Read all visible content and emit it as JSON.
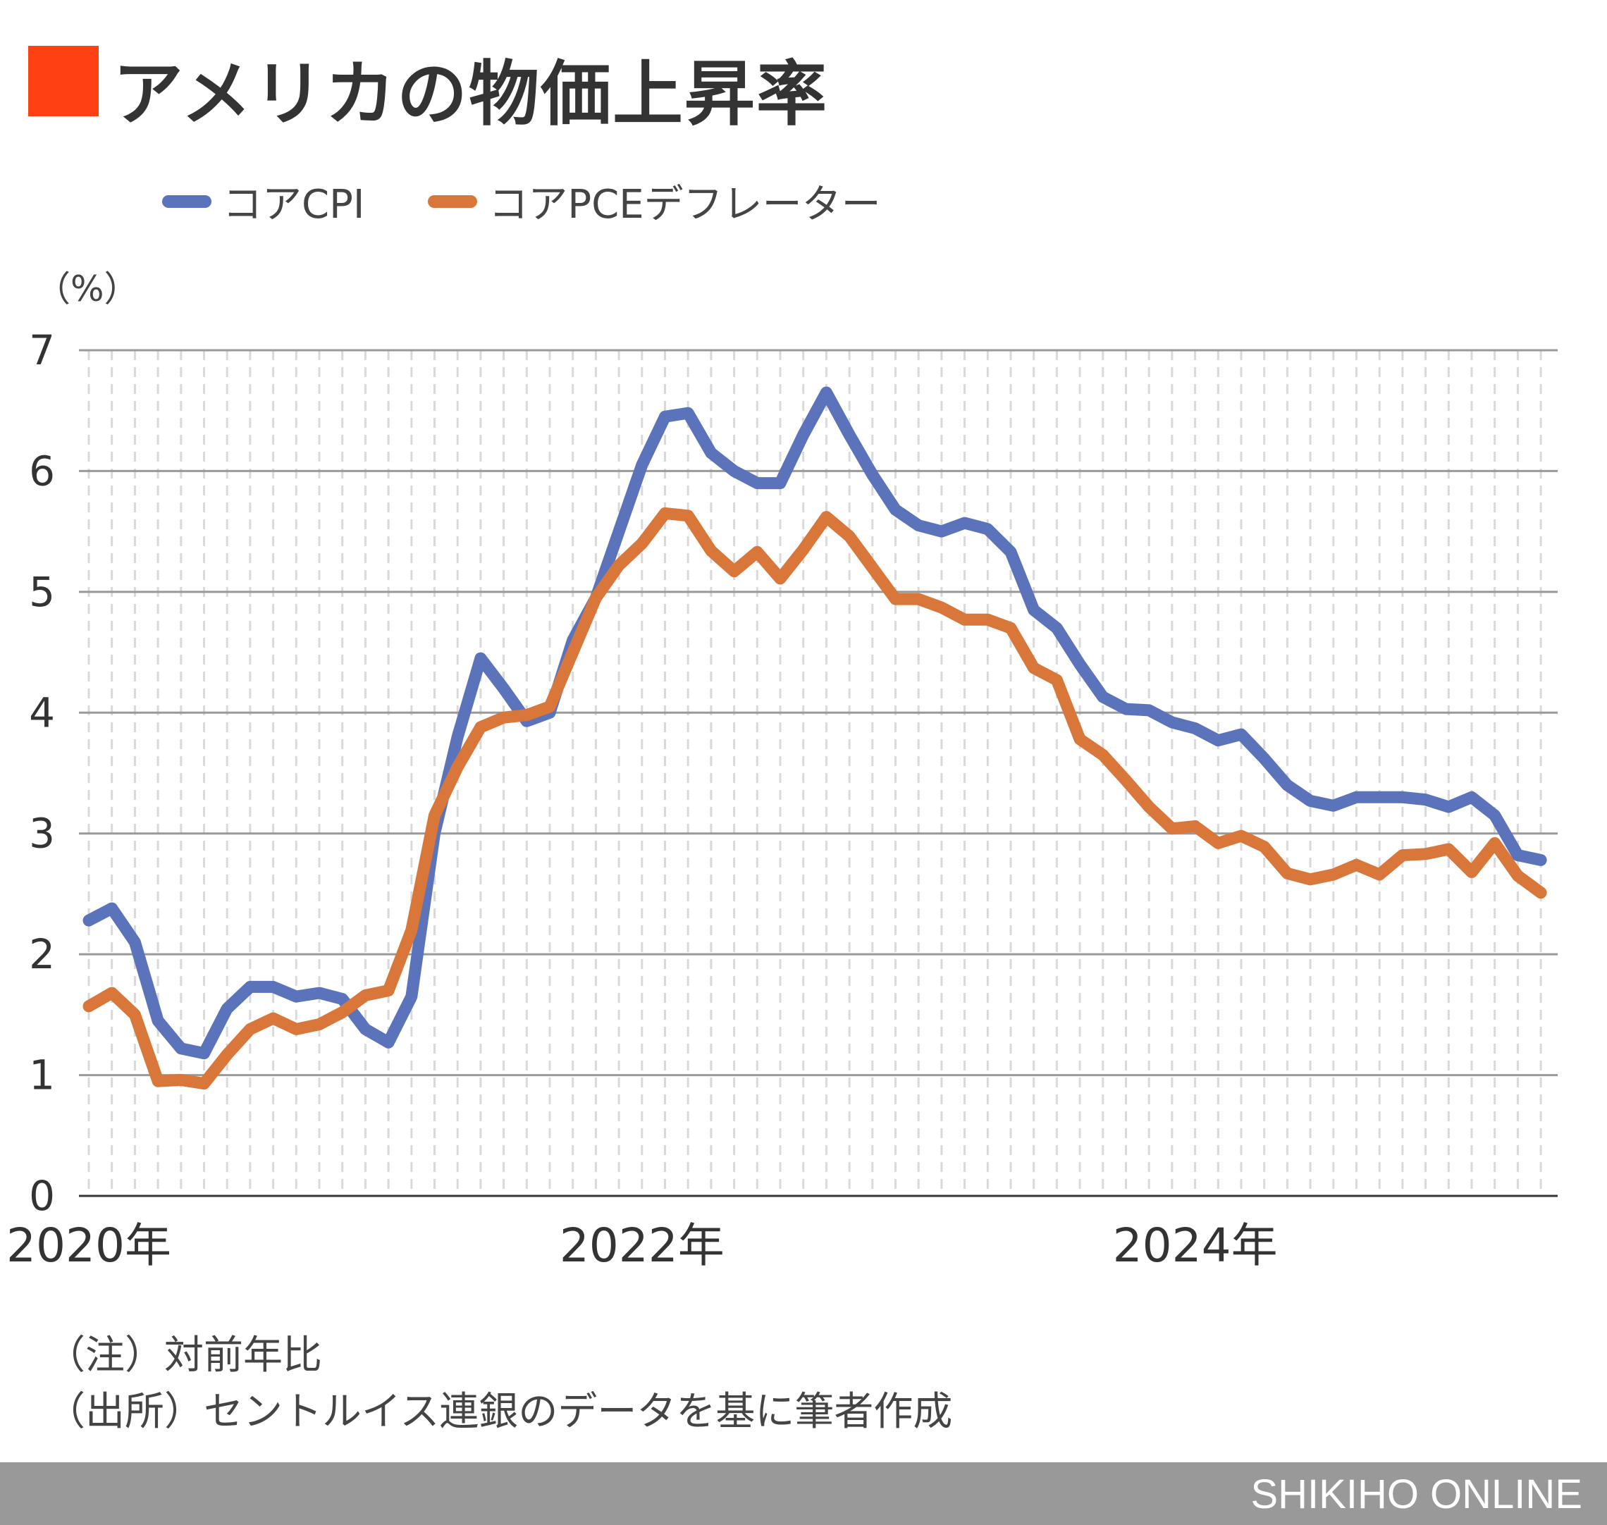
{
  "header": {
    "title": "アメリカの物価上昇率",
    "accent_color": "#FF4013"
  },
  "chart_data": {
    "type": "line",
    "title": "アメリカの物価上昇率",
    "ylabel": "（%）",
    "ylim": [
      0,
      7
    ],
    "yticks": [
      "0",
      "1",
      "2",
      "3",
      "4",
      "5",
      "6",
      "7"
    ],
    "x_start": "2020-01",
    "x_end": "2025-04",
    "xtick_labels": [
      {
        "label": "2020年",
        "month": "2020-01"
      },
      {
        "label": "2022年",
        "month": "2022-01"
      },
      {
        "label": "2024年",
        "month": "2024-01"
      }
    ],
    "grid": "horizontal solid, monthly vertical dashed",
    "legend_position": "top",
    "series": [
      {
        "name": "コアCPI",
        "color": "#5A73BA",
        "values": [
          2.28,
          2.38,
          2.1,
          1.45,
          1.22,
          1.18,
          1.55,
          1.73,
          1.73,
          1.65,
          1.68,
          1.63,
          1.38,
          1.27,
          1.65,
          3.0,
          3.8,
          4.45,
          4.2,
          3.93,
          4.0,
          4.6,
          4.95,
          5.5,
          6.05,
          6.45,
          6.48,
          6.15,
          6.0,
          5.9,
          5.9,
          6.3,
          6.65,
          6.3,
          5.97,
          5.68,
          5.55,
          5.5,
          5.57,
          5.52,
          5.33,
          4.85,
          4.7,
          4.4,
          4.13,
          4.03,
          4.02,
          3.92,
          3.87,
          3.77,
          3.82,
          3.62,
          3.4,
          3.27,
          3.23,
          3.3,
          3.3,
          3.3,
          3.28,
          3.22,
          3.3,
          3.15,
          2.82,
          2.78
        ]
      },
      {
        "name": "コアPCEデフレーター",
        "color": "#D9773A",
        "values": [
          1.57,
          1.68,
          1.5,
          0.95,
          0.96,
          0.93,
          1.17,
          1.38,
          1.47,
          1.38,
          1.42,
          1.52,
          1.66,
          1.7,
          2.2,
          3.15,
          3.55,
          3.88,
          3.96,
          3.98,
          4.05,
          4.5,
          4.95,
          5.22,
          5.4,
          5.65,
          5.63,
          5.34,
          5.17,
          5.33,
          5.11,
          5.35,
          5.62,
          5.46,
          5.2,
          4.94,
          4.94,
          4.87,
          4.77,
          4.77,
          4.7,
          4.37,
          4.27,
          3.78,
          3.65,
          3.44,
          3.22,
          3.04,
          3.06,
          2.92,
          2.98,
          2.89,
          2.67,
          2.62,
          2.66,
          2.74,
          2.66,
          2.82,
          2.83,
          2.87,
          2.68,
          2.92,
          2.65,
          2.51
        ]
      }
    ]
  },
  "notes": [
    "（注）対前年比",
    "（出所）セントルイス連銀のデータを基に筆者作成"
  ],
  "footer": {
    "brand": "SHIKIHO ONLINE"
  }
}
